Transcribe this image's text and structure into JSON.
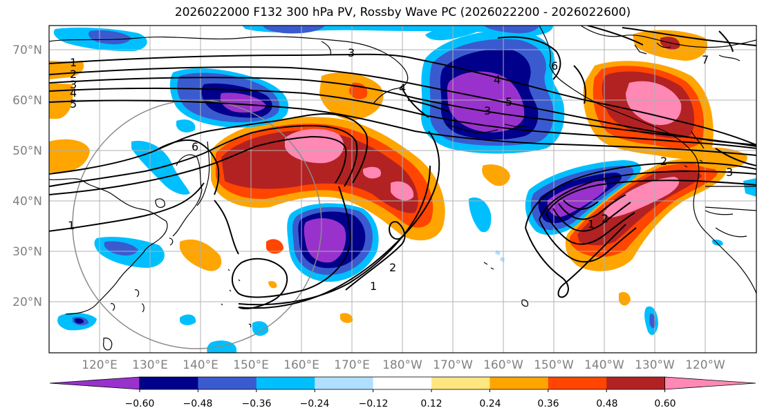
{
  "title": "2026022000 F132 300 hPa PV, Rossby Wave PC (2026022200 - 2026022600)",
  "lat_labels": [
    "70°N",
    "60°N",
    "50°N",
    "40°N",
    "30°N",
    "20°N"
  ],
  "lon_labels": [
    "120°E",
    "130°E",
    "140°E",
    "150°E",
    "160°E",
    "170°E",
    "180°W",
    "170°W",
    "160°W",
    "150°W",
    "140°W",
    "130°W",
    "120°W"
  ],
  "colorbar": {
    "ticks": [
      "−0.60",
      "−0.48",
      "−0.36",
      "−0.24",
      "−0.12",
      "0.12",
      "0.24",
      "0.36",
      "0.48",
      "0.60"
    ],
    "colors": [
      "#9932cc",
      "#00008b",
      "#3a5bd0",
      "#00bfff",
      "#b0e0ff",
      "#ffffff",
      "#ffe680",
      "#ffa500",
      "#ff4500",
      "#b22222",
      "#ff88b5"
    ]
  },
  "colors": {
    "purple": "#9932cc",
    "navy": "#00008b",
    "royal": "#3a5bd0",
    "sky": "#00bfff",
    "pale_blue": "#b0e0ff",
    "pale_yellow": "#ffe680",
    "orange": "#ffa500",
    "red_orange": "#ff4500",
    "firebrick": "#b22222",
    "pink": "#ff88b5"
  },
  "contour_labels": {
    "left": [
      "1",
      "2",
      "3",
      "4",
      "5"
    ],
    "center": [
      "4",
      "3",
      "2",
      "1",
      "6"
    ],
    "right": [
      "6",
      "5",
      "4",
      "3",
      "2",
      "1",
      "3",
      "2",
      "7"
    ],
    "southwest": [
      "1"
    ],
    "south": [
      "1",
      "2"
    ]
  }
}
